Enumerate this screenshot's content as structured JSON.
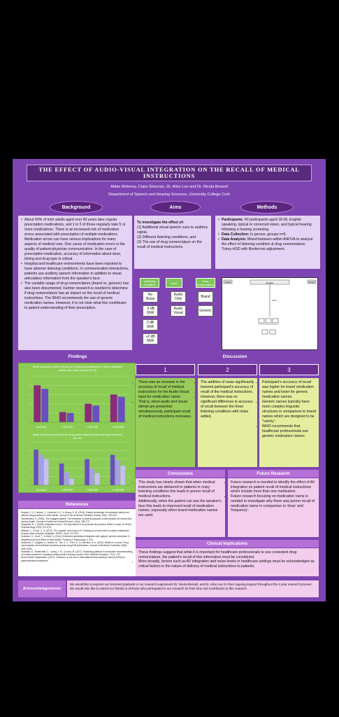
{
  "title": "THE EFFECT OF AUDIO-VISUAL INTEGRATION ON THE RECALL OF MEDICAL INSTRUCTIONS",
  "authors": "Abbie Moloney, Ciara Shannon, Dr. Alice Lee and Dr. Nicola Bessell",
  "department": "Department of Speech and Hearing Sciences, University College Cork",
  "headers": {
    "background": "Background",
    "aims": "Aims",
    "methods": "Methods",
    "findings": "Findings",
    "discussion": "Discussion",
    "conclusions": "Conclusions",
    "future": "Future Research",
    "clinical": "Clinical Implications",
    "references": "References",
    "acknowledgements": "Acknowledgements"
  },
  "background": {
    "bullets": [
      "About 69% of Irish adults aged over 50 years take regular prescription medications, and 1 in 5 of those regularly take 5 or more medications. There is an increased risk of medication errors associated with prescription of multiple medications. Medication errors can have serious implications for many aspects of medical care. One cause of medication errors is the quality of patient-physician communication. In the case of prescription medication, accuracy of information about dose, timing and drug type is critical.",
      "Hospital and healthcare environments have been reported to have adverse listening conditions. In communication interactions, patients use auditory speech information in addition to visual articulatory information from the speaker's face.",
      "The variable usage of drug nomenclature (brand vs. generic) has also been documented. Further research is needed to determine if drug nomenclature has an impact on the recall of medical instructions. The WHO recommends the use of generic medication names. However, it is not clear what this contributes to patient understanding of their prescription."
    ]
  },
  "aims": {
    "lead": "To investigate the effect of:",
    "items": [
      "(1)  Additional visual speech cues to auditory signal,",
      "(2)  Different listening conditions, and",
      "(3)  The use of drug nomenclature on the recall of medical instructions."
    ]
  },
  "methods": {
    "items": [
      {
        "label": "Participants:",
        "text": " 40 participants aged 18-30, English speaking, typical or corrected vision, and typical hearing following a hearing screening."
      },
      {
        "label": "Data Collection:",
        "text": " In person, groups n=5."
      },
      {
        "label": "Data Analysis:",
        "text": " Mixed between-within ANOVA to analyse the effect of listening condition & drug nomenclature. Tukey-HSD with Bonferroni adjustment."
      }
    ]
  },
  "design": {
    "headers": [
      "Listening Condition",
      "Input",
      "Drug Nomenclature"
    ],
    "listening": [
      "No Noise",
      "-3 dB SNR",
      "0 dB SNR",
      "+2 dB SNR"
    ],
    "input": [
      "Audio Only",
      "Audio Visual"
    ],
    "nomenclature": [
      "Brand",
      "Generic"
    ]
  },
  "setup_labels": {
    "speaker": "Speaker",
    "left": "Monitor",
    "right": "Monitor",
    "distance": "2.5m"
  },
  "charts": {
    "top_title": "Mean accuracy scores (%) across 4 listening conditions & 2 input modalities (audio-only, audio-visual) (N=40)",
    "bottom_title": "Mean accuracy scores (%) for drug nomenclature across listening conditions (N=40)"
  },
  "chart_data": [
    {
      "type": "bar",
      "categories": [
        "No Noise",
        "-3 dB SNR",
        "0 dB SNR",
        "+2 dB SNR"
      ],
      "series": [
        {
          "name": "",
          "values": [
            80,
            22,
            40,
            60
          ]
        },
        {
          "name": "",
          "values": [
            72,
            20,
            36,
            55
          ]
        }
      ],
      "ylim": [
        0,
        100
      ]
    },
    {
      "type": "bar",
      "categories": [
        "No Noise",
        "-3 dB SNR",
        "0 dB SNR",
        "+2 dB SNR"
      ],
      "series": [
        {
          "name": "",
          "values": [
            82,
            50,
            60,
            70
          ]
        },
        {
          "name": "",
          "values": [
            70,
            30,
            38,
            58
          ]
        },
        {
          "name": "",
          "values": [
            60,
            15,
            28,
            45
          ]
        }
      ],
      "ylim": [
        0,
        100
      ]
    }
  ],
  "discussion": {
    "cols": [
      {
        "num": "1",
        "bullets": [
          "There was an increase in the accuracy of recall of medical instructions for the Audio-Visual input for medication name.",
          "That is, when audio and visual stimuli are presented simultaneously, participant recall of medical instructions increases."
        ]
      },
      {
        "num": "2",
        "bullets": [
          "The addition of noise significantly lowered participant's accuracy of recall of the medical instructions.",
          "However, there was no significant difference in accuracy of recall between the three listening conditions with noise added."
        ]
      },
      {
        "num": "3",
        "bullets": [
          "Participant's accuracy of recall was higher for brand medication names and lower for generic medication names.",
          "Generic names typically have more complex linguistic structures in comparison to brand names which are designed to be \"catchy\".",
          "WHO recommends that healthcare professionals use generic medication names."
        ]
      }
    ]
  },
  "conclusions": [
    "This study has clearly shown that when medical instructions are delivered to patients in noisy listening conditions this leads to poorer recall of medical instructions.",
    "Additionally, when the patient can see the speaker's face this leads to improved recall of medication names, especially when brand medication names are used."
  ],
  "future": [
    "Future research is needed to identify the effect of AV integration on patient recall of medical instructions which include more than one medication.",
    "Future research focusing on medication name is needed to investigate why there was poorer recall of medication name in comparison to 'dose' and 'frequency'."
  ],
  "clinical": [
    "These findings suggest that while it is important for healthcare professionals to use consistent drug nomenclature, the patient's recall of this information must be considered.",
    "More broadly, factors such as AV integration and noise-levels in healthcare settings must be acknowledged as critical factors in the nature of delivery of medical instructions to patients."
  ],
  "references": [
    "Hughes, J. G., Horkan, J., Donnelly, A. E., & Kenny, R. M. (2014). Patient knowledge of medication safety and adverse drug reactions in older adults. Journal of the American Geriatrics Society, 62(2), 400-402.",
    "Timmermans, S. (2020). The engaged patient: The relevance of patient-physician communication for twenty-first-century health. Journal of Health and Social Behavior, 61(3), 259-273.",
    "Fitzgerald, R. J. (2009). Medication errors: The importance of an accurate drug history. British Journal of Clinical Pharmacology, 67(6), 671-675.",
    "Wallace, L., & Karl, C. A. (2019). The hospital: how noisy is it? Creating an environment for patient satisfaction through noise reduction strategies. HERD, 12(4), 197-203.",
    "Schwartz, K., Scott, T., & Seitz, A. (2014). Enhanced audiovisual integration with aging in speech perception: A heightened McGurk effect in older adults. Frontiers in Psychology, 5, 323.",
    "Sandholm, F., Quigley, S., Heaton, A., Tan, G. C., Peel, S., & Gonzalez, A. A. (2021). What's in a name? Drug nomenclature and medicinal chemistry trends using INN publications. Journal of Medicinal Chemistry, 64(8), 4410-4429.",
    "Soheilian, K., Rodenrieth, C., Leong, T. M., & Dona, M. (2017). Examining patterns in medication characterization of medical students in academic family practice training centers. BMC Medical Education, 17(1), 175.",
    "World Health Organization. (2017). Guidance on the use of International Nonproprietary Names (INNs) for pharmaceutical substances."
  ],
  "acknowledgements": [
    "We would like to express our sincerest gratitude to our research supervisors Dr. Nicola Bessell, and Dr. Alice Lee for their ongoing support throughout the 2 year research process.",
    "We would also like to extend our thanks to all those who participated in our research for their time and contribution to this research."
  ],
  "colors": {
    "poster": "#7e45b2",
    "title_bar": "#5a2a7e",
    "pill": "#5b2580",
    "light_box": "#e4d3f4",
    "chart_bg": "#8ccc55",
    "bar_dark": "#8a2c7a",
    "bar_purple": "#6a4fc0",
    "bar_light": "#a89ee8",
    "discussion_green": "#99cc5a",
    "discussion_yellow": "#e4ee9f",
    "pink_box": "#f2cdee"
  }
}
